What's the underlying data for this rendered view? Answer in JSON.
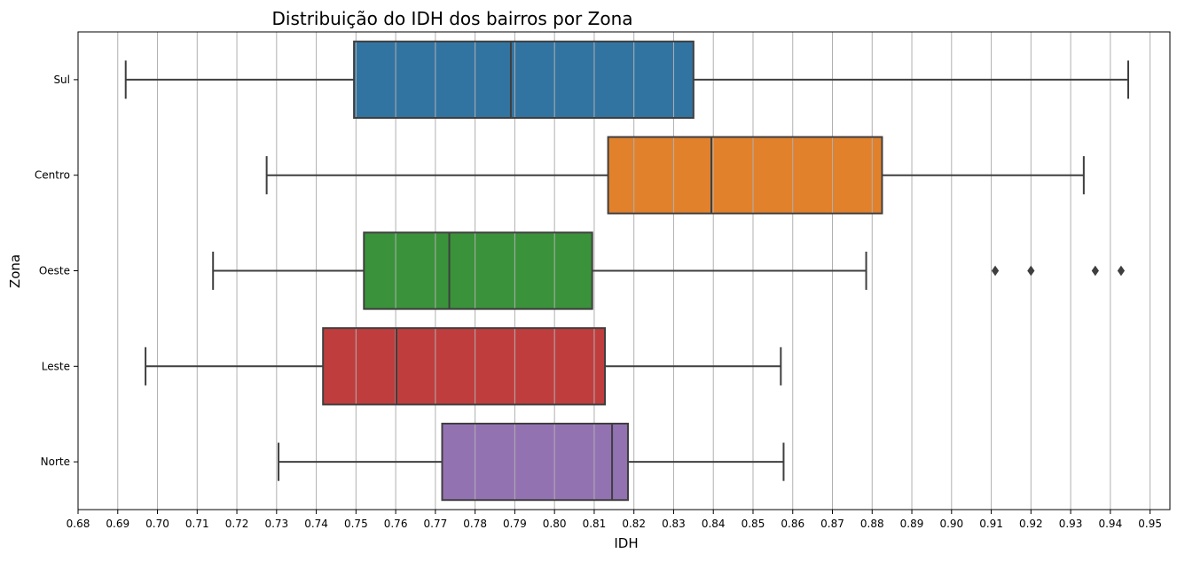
{
  "chart_data": {
    "type": "boxplot",
    "orientation": "horizontal",
    "title": "Distribuição do IDH dos bairros por Zona",
    "xlabel": "IDH",
    "ylabel": "Zona",
    "xlim": [
      0.68,
      0.955
    ],
    "grid": "vertical",
    "categories": [
      "Sul",
      "Centro",
      "Oeste",
      "Leste",
      "Norte"
    ],
    "x_ticks": [
      0.68,
      0.69,
      0.7,
      0.71,
      0.72,
      0.73,
      0.74,
      0.75,
      0.76,
      0.77,
      0.78,
      0.79,
      0.8,
      0.81,
      0.82,
      0.83,
      0.84,
      0.85,
      0.86,
      0.87,
      0.88,
      0.89,
      0.9,
      0.91,
      0.92,
      0.93,
      0.94,
      0.95
    ],
    "x_tick_labels": [
      "0.68",
      "0.69",
      "0.70",
      "0.71",
      "0.72",
      "0.73",
      "0.74",
      "0.75",
      "0.76",
      "0.77",
      "0.78",
      "0.79",
      "0.80",
      "0.81",
      "0.82",
      "0.83",
      "0.84",
      "0.85",
      "0.86",
      "0.87",
      "0.88",
      "0.89",
      "0.90",
      "0.91",
      "0.92",
      "0.93",
      "0.94",
      "0.95"
    ],
    "boxes": [
      {
        "category": "Sul",
        "color": "#3274a1",
        "whisker_low": 0.692,
        "q1": 0.7495,
        "median": 0.789,
        "q3": 0.835,
        "whisker_high": 0.9445,
        "outliers": []
      },
      {
        "category": "Centro",
        "color": "#e1812c",
        "whisker_low": 0.7275,
        "q1": 0.8135,
        "median": 0.8395,
        "q3": 0.8825,
        "whisker_high": 0.9333,
        "outliers": []
      },
      {
        "category": "Oeste",
        "color": "#3a923a",
        "whisker_low": 0.714,
        "q1": 0.752,
        "median": 0.7735,
        "q3": 0.8095,
        "whisker_high": 0.8785,
        "outliers": [
          0.911,
          0.92,
          0.9362,
          0.9427
        ]
      },
      {
        "category": "Leste",
        "color": "#c03d3e",
        "whisker_low": 0.697,
        "q1": 0.7417,
        "median": 0.7602,
        "q3": 0.8127,
        "whisker_high": 0.857,
        "outliers": []
      },
      {
        "category": "Norte",
        "color": "#9372b2",
        "whisker_low": 0.7305,
        "q1": 0.7717,
        "median": 0.8145,
        "q3": 0.8185,
        "whisker_high": 0.8577,
        "outliers": []
      }
    ],
    "style": {
      "line_color": "#3f3f3f",
      "grid_color": "#b0b0b0",
      "axis_color": "#000000"
    }
  }
}
